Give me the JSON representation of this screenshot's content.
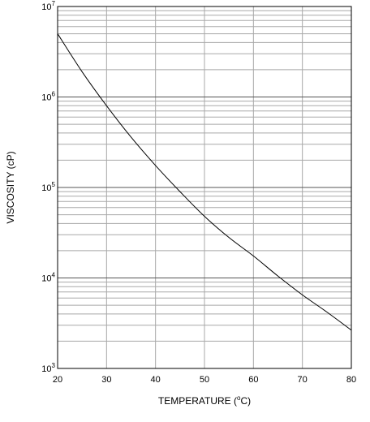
{
  "chart_data": {
    "type": "line",
    "title": "",
    "xlabel": "TEMPERATURE (",
    "xlabel_degree": "o",
    "xlabel_unit": "C)",
    "ylabel": "VISCOSITY (cP)",
    "xlim": [
      20,
      80
    ],
    "ylim": [
      1000,
      10000000
    ],
    "yscale": "log",
    "grid": true,
    "x_ticks": [
      20,
      30,
      40,
      50,
      60,
      70,
      80
    ],
    "y_tick_labels": [
      {
        "value": 1000,
        "base": "10",
        "exp": "3"
      },
      {
        "value": 10000,
        "base": "10",
        "exp": "4"
      },
      {
        "value": 100000,
        "base": "10",
        "exp": "5"
      },
      {
        "value": 1000000,
        "base": "10",
        "exp": "6"
      },
      {
        "value": 10000000,
        "base": "10",
        "exp": "7"
      }
    ],
    "series": [
      {
        "color": "#000000",
        "x": [
          20,
          25,
          30,
          35,
          40,
          45,
          50,
          55,
          60,
          65,
          70,
          75,
          80
        ],
        "y": [
          5000000,
          1900000,
          800000,
          360000,
          175000,
          90000,
          48000,
          28000,
          17500,
          10500,
          6500,
          4200,
          2650
        ]
      }
    ]
  }
}
